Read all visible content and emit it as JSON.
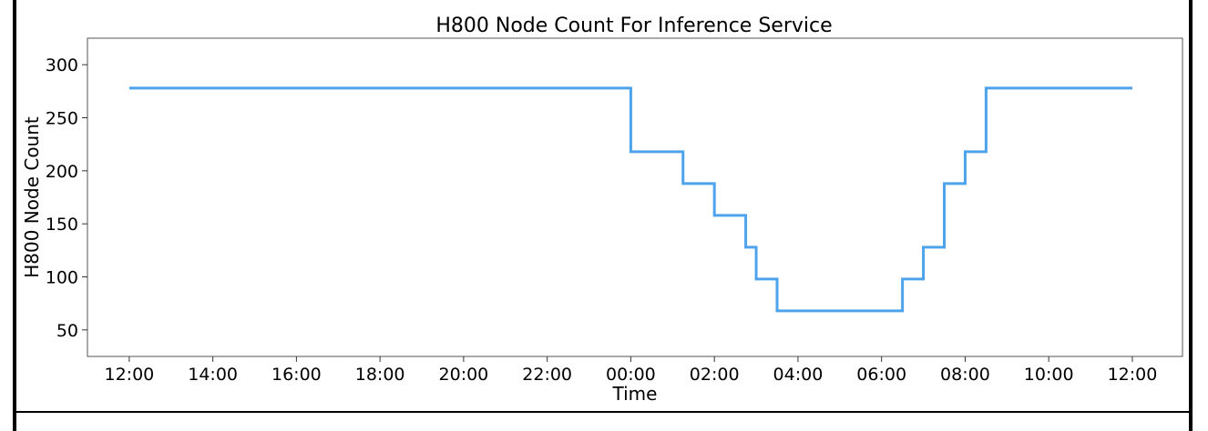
{
  "chart_data": {
    "type": "line",
    "title": "H800 Node Count For Inference Service",
    "xlabel": "Time",
    "ylabel": "H800 Node Count",
    "x_tick_labels": [
      "12:00",
      "14:00",
      "16:00",
      "18:00",
      "20:00",
      "22:00",
      "00:00",
      "02:00",
      "04:00",
      "06:00",
      "08:00",
      "10:00",
      "12:00"
    ],
    "x_tick_hours": [
      12,
      14,
      16,
      18,
      20,
      22,
      24,
      26,
      28,
      30,
      32,
      34,
      36
    ],
    "y_ticks": [
      50,
      100,
      150,
      200,
      250,
      300
    ],
    "ylim": [
      25,
      325
    ],
    "xlim": [
      11.0,
      37.2
    ],
    "grid": false,
    "series": [
      {
        "color": "#4da3ec",
        "step": "post",
        "x": [
          12,
          24,
          25.25,
          26,
          26.75,
          27,
          27.5,
          30.5,
          31,
          31.5,
          32,
          32.5,
          36
        ],
        "values": [
          278,
          218,
          188,
          158,
          128,
          98,
          68,
          98,
          128,
          188,
          218,
          278,
          278
        ]
      }
    ]
  }
}
